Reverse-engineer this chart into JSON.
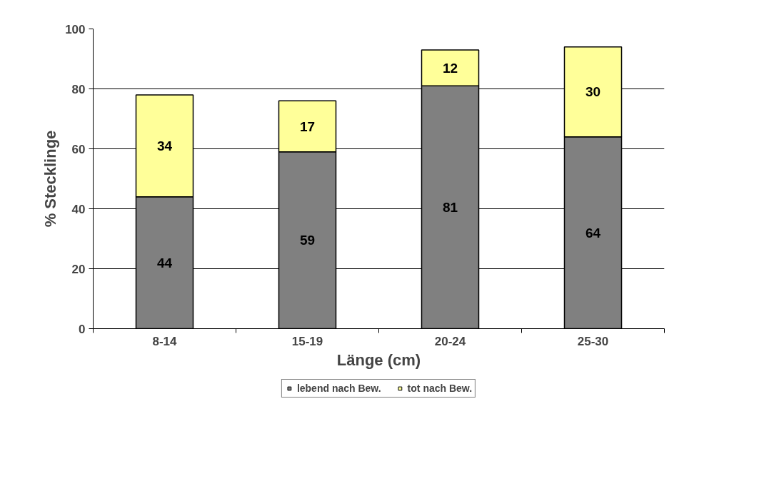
{
  "chart_data": {
    "type": "bar",
    "stacked": true,
    "xlabel": "Länge (cm)",
    "ylabel": "% Stecklinge",
    "categories": [
      "8-14",
      "15-19",
      "20-24",
      "25-30"
    ],
    "series": [
      {
        "name": "lebend nach Bew.",
        "color": "#808080",
        "values": [
          44,
          59,
          81,
          64
        ]
      },
      {
        "name": "tot nach Bew.",
        "color": "#ffff99",
        "values": [
          34,
          17,
          12,
          30
        ]
      }
    ],
    "ylim": [
      0,
      100
    ],
    "yticks": [
      0,
      20,
      40,
      60,
      80,
      100
    ],
    "grid": "y",
    "legend": "bottom",
    "data_labels": true
  }
}
